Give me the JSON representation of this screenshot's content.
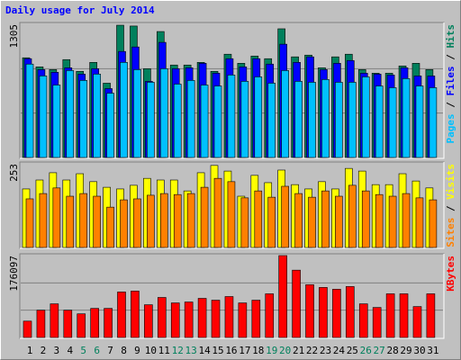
{
  "chart_data": [
    {
      "type": "bar",
      "title": "Daily usage for July 2014",
      "ylim": [
        0,
        1305
      ],
      "yticks": [
        1305
      ],
      "grid": true,
      "legend_separator": " / ",
      "series": [
        {
          "name": "Pages",
          "color": "#00c0ff",
          "values": [
            915,
            799,
            710,
            852,
            755,
            817,
            630,
            932,
            861,
            737,
            870,
            719,
            755,
            710,
            701,
            808,
            746,
            790,
            728,
            852,
            746,
            737,
            764,
            737,
            737,
            790,
            701,
            684,
            773,
            701,
            684
          ]
        },
        {
          "name": "Files",
          "color": "#0000ff",
          "values": [
            968,
            861,
            835,
            879,
            817,
            870,
            675,
            1039,
            1083,
            746,
            1128,
            870,
            879,
            923,
            826,
            968,
            888,
            968,
            915,
            1110,
            932,
            986,
            861,
            923,
            950,
            826,
            817,
            808,
            879,
            799,
            799
          ]
        },
        {
          "name": "Hits",
          "color": "#00805c",
          "values": [
            977,
            888,
            861,
            959,
            844,
            932,
            728,
            1296,
            1288,
            870,
            1234,
            906,
            906,
            932,
            844,
            1012,
            923,
            994,
            968,
            1261,
            986,
            1003,
            879,
            986,
            1012,
            861,
            826,
            826,
            897,
            923,
            861
          ]
        }
      ]
    },
    {
      "type": "bar",
      "ylim": [
        0,
        253
      ],
      "yticks": [
        253
      ],
      "grid": false,
      "legend_separator": " / ",
      "series": [
        {
          "name": "Sites",
          "color": "#ff8000",
          "values": [
            147,
            163,
            180,
            155,
            163,
            155,
            122,
            144,
            147,
            158,
            163,
            160,
            163,
            182,
            209,
            199,
            150,
            171,
            152,
            185,
            163,
            152,
            171,
            155,
            188,
            171,
            160,
            155,
            163,
            150,
            144
          ]
        },
        {
          "name": "Visits",
          "color": "#ffff00",
          "values": [
            177,
            204,
            226,
            204,
            223,
            199,
            182,
            177,
            188,
            209,
            204,
            204,
            171,
            226,
            248,
            231,
            155,
            218,
            196,
            234,
            190,
            177,
            199,
            177,
            239,
            231,
            190,
            190,
            223,
            201,
            180
          ]
        }
      ]
    },
    {
      "type": "bar",
      "ylim": [
        0,
        176097
      ],
      "yticks": [
        176097
      ],
      "grid": true,
      "categories": [
        "1",
        "2",
        "3",
        "4",
        "5",
        "6",
        "7",
        "8",
        "9",
        "10",
        "11",
        "12",
        "13",
        "14",
        "15",
        "16",
        "17",
        "18",
        "19",
        "20",
        "21",
        "22",
        "23",
        "24",
        "25",
        "26",
        "27",
        "28",
        "29",
        "30",
        "31"
      ],
      "category_colors": [
        "#000000",
        "#000000",
        "#000000",
        "#000000",
        "#00805c",
        "#00805c",
        "#000000",
        "#000000",
        "#000000",
        "#000000",
        "#000000",
        "#00805c",
        "#00805c",
        "#000000",
        "#000000",
        "#000000",
        "#000000",
        "#000000",
        "#00805c",
        "#00805c",
        "#000000",
        "#000000",
        "#000000",
        "#000000",
        "#000000",
        "#00805c",
        "#00805c",
        "#000000",
        "#000000",
        "#000000",
        "#000000"
      ],
      "series": [
        {
          "name": "KBytes",
          "color": "#ff0000",
          "values": [
            35226,
            58710,
            72409,
            58710,
            50882,
            62624,
            62624,
            97850,
            99807,
            70452,
            86108,
            74366,
            76323,
            84151,
            80237,
            88065,
            74366,
            80237,
            93936,
            176097,
            144818,
            113506,
            107635,
            103721,
            109592,
            72409,
            64581,
            93936,
            93936,
            66538,
            93936
          ]
        }
      ]
    }
  ]
}
